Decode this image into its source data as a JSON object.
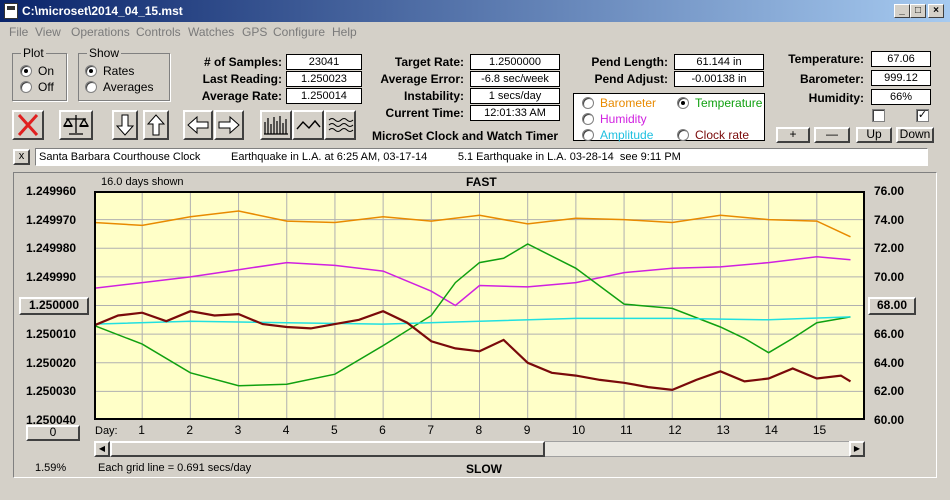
{
  "window": {
    "title": "C:\\microset\\2014_04_15.mst"
  },
  "menu": [
    "File",
    "View",
    "Operations",
    "Controls",
    "Watches",
    "GPS",
    "Configure",
    "Help"
  ],
  "plot": {
    "caption": "Plot",
    "on": "On",
    "off": "Off"
  },
  "show": {
    "caption": "Show",
    "rates": "Rates",
    "averages": "Averages"
  },
  "stats": {
    "samples_label": "# of Samples:",
    "samples": "23041",
    "last_label": "Last Reading:",
    "last": "1.250023",
    "avg_label": "Average Rate:",
    "avg": "1.250014",
    "target_label": "Target Rate:",
    "target": "1.2500000",
    "err_label": "Average Error:",
    "err": "-6.8 sec/week",
    "inst_label": "Instability:",
    "inst": "1 secs/day",
    "time_label": "Current Time:",
    "time": "12:01:33 AM",
    "pend_label": "Pend Length:",
    "pend": "61.144 in",
    "adj_label": "Pend Adjust:",
    "adj": "-0.00138 in",
    "temp_label": "Temperature:",
    "temp": "67.06",
    "baro_label": "Barometer:",
    "baro": "999.12",
    "hum_label": "Humidity:",
    "hum": "66%"
  },
  "app_title": "MicroSet Clock and Watch Timer",
  "sensors": {
    "barometer": "Barometer",
    "temperature": "Temperature",
    "humidity": "Humidity",
    "amplitude": "Amplitude",
    "clockrate": "Clock rate"
  },
  "sensor_buttons": {
    "plus": "+",
    "minus": "—",
    "up": "Up",
    "down": "Down"
  },
  "notes": {
    "close": "x",
    "text": "Santa Barbara Courthouse Clock          Earthquake in L.A. at 6:25 AM, 03-17-14          5.1 Earthquake in L.A. 03-28-14  see 9:11 PM"
  },
  "chart": {
    "days_shown": "16.0 days shown",
    "fast": "FAST",
    "slow": "SLOW",
    "day_label": "Day:",
    "grid_note": "Each grid line = 0.691 secs/day",
    "percent": "1.59%",
    "left_value_btn": "1.250000",
    "right_value_btn": "68.00",
    "zero_btn": "0"
  },
  "chart_data": {
    "type": "line",
    "x_label": "Day:",
    "x_ticks": [
      "1",
      "2",
      "3",
      "4",
      "5",
      "6",
      "7",
      "8",
      "9",
      "10",
      "11",
      "12",
      "13",
      "14",
      "15"
    ],
    "y_left_ticks": [
      "1.249960",
      "1.249970",
      "1.249980",
      "1.249990",
      "1.250010",
      "1.250020",
      "1.250030",
      "1.250040"
    ],
    "y_left_range": [
      1.24996,
      1.25004
    ],
    "y_right_ticks": [
      "76.00",
      "74.00",
      "72.00",
      "70.00",
      "66.00",
      "64.00",
      "62.00",
      "60.00"
    ],
    "y_right_range": [
      60,
      76
    ],
    "colors": {
      "barometer": "#e88a00",
      "temperature": "#10a010",
      "humidity": "#d020e0",
      "amplitude": "#20e0e0",
      "clockrate": "#7a0a0a"
    },
    "series": [
      {
        "name": "Barometer",
        "axis": "right",
        "x": [
          0,
          1,
          2,
          3,
          4,
          5,
          6,
          7,
          8,
          9,
          10,
          11,
          12,
          13,
          14,
          15,
          15.7
        ],
        "y": [
          73.8,
          73.6,
          74.2,
          74.6,
          73.9,
          73.8,
          74.2,
          73.9,
          74.3,
          73.7,
          74.1,
          74.0,
          73.8,
          74.3,
          74.0,
          73.9,
          72.8
        ]
      },
      {
        "name": "Humidity",
        "axis": "right",
        "x": [
          0,
          1,
          2,
          3,
          4,
          5,
          6,
          7,
          7.5,
          8,
          9,
          10,
          11,
          12,
          13,
          14,
          15,
          15.7
        ],
        "y": [
          69.2,
          69.6,
          70.0,
          70.5,
          71.0,
          70.8,
          70.4,
          69.0,
          68.0,
          69.4,
          69.3,
          69.6,
          70.3,
          70.6,
          70.7,
          71.0,
          71.4,
          71.2
        ]
      },
      {
        "name": "Temperature",
        "axis": "right",
        "x": [
          0,
          1,
          2,
          3,
          4,
          5,
          6,
          7,
          7.5,
          8,
          8.5,
          9,
          10,
          11,
          12,
          13,
          13.5,
          14,
          14.5,
          15,
          15.7
        ],
        "y": [
          66.6,
          65.3,
          63.3,
          62.4,
          62.5,
          63.2,
          65.2,
          67.3,
          69.6,
          71.0,
          71.3,
          72.3,
          70.6,
          68.1,
          67.8,
          66.5,
          65.7,
          64.7,
          65.7,
          66.8,
          67.2
        ]
      },
      {
        "name": "Amplitude",
        "axis": "right",
        "x": [
          0,
          2,
          4,
          6,
          8,
          10,
          12,
          14,
          15.7
        ],
        "y": [
          66.7,
          66.9,
          66.8,
          66.7,
          66.9,
          67.1,
          67.1,
          67.0,
          67.2
        ]
      },
      {
        "name": "Clock rate",
        "axis": "right",
        "x": [
          0,
          0.5,
          1,
          1.5,
          2,
          2.5,
          3,
          3.5,
          4,
          4.5,
          5,
          5.5,
          6,
          6.5,
          7,
          7.5,
          8,
          8.5,
          9,
          9.5,
          10,
          10.5,
          11,
          11.5,
          12,
          12.5,
          13,
          13.5,
          14,
          14.5,
          15,
          15.5,
          15.7
        ],
        "y": [
          66.6,
          67.3,
          67.5,
          66.9,
          67.6,
          67.3,
          67.4,
          66.7,
          66.5,
          66.4,
          66.7,
          67.0,
          67.6,
          66.8,
          65.5,
          65.0,
          64.8,
          65.6,
          64.0,
          63.3,
          63.1,
          62.8,
          62.6,
          62.3,
          62.1,
          62.8,
          63.4,
          62.7,
          62.9,
          63.6,
          62.9,
          63.1,
          62.7
        ]
      }
    ]
  }
}
